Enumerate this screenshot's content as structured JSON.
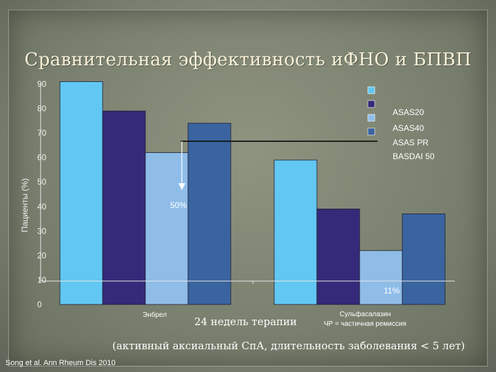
{
  "title": "Сравнительная эффективность иФНО и БПВП",
  "chart_data": {
    "type": "bar",
    "ylabel": "Пациенты (%)",
    "ylim": [
      0,
      90
    ],
    "yticks": [
      0,
      10,
      20,
      30,
      40,
      50,
      60,
      70,
      80,
      90
    ],
    "categories": [
      "Энбрел",
      "Сульфасалазин"
    ],
    "series": [
      {
        "name": "ASAS20",
        "color": "#62c7f2",
        "values": [
          91,
          59
        ]
      },
      {
        "name": "ASAS40",
        "color": "#352a7a",
        "values": [
          79,
          39
        ]
      },
      {
        "name": "ASAS PR",
        "color": "#8fbde8",
        "values": [
          62,
          22
        ]
      },
      {
        "name": "BASDAI 50",
        "color": "#3a64a0",
        "values": [
          74,
          37
        ]
      }
    ],
    "annotations": {
      "arrow_label": "50%",
      "bottom_label": "11%"
    }
  },
  "labels": {
    "group1": "Энбрел",
    "group2_title": "Сульфасалазин",
    "group2_sub": "ЧР = частичная ремиссия",
    "center": "24 недель терапии",
    "note": "(активный аксиальный СпА, длительность заболевания < 5 лет)",
    "source": "Song et al. Ann Rheum Dis 2010"
  }
}
